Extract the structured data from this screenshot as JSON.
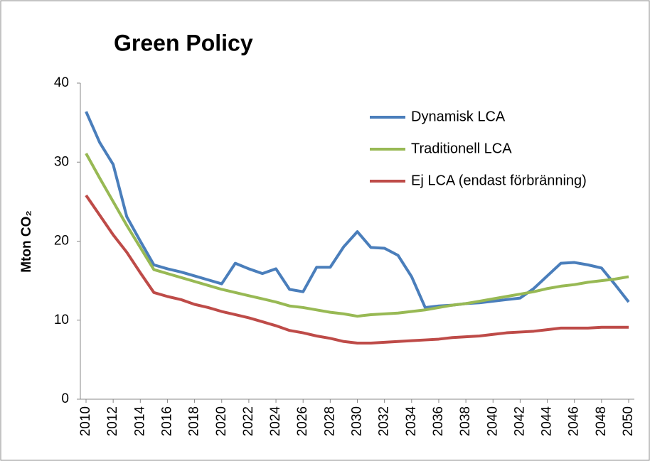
{
  "chart_data": {
    "type": "line",
    "title": "Green Policy",
    "y_label": "Mton CO₂",
    "x": [
      2010,
      2011,
      2012,
      2013,
      2014,
      2015,
      2016,
      2017,
      2018,
      2019,
      2020,
      2021,
      2022,
      2023,
      2024,
      2025,
      2026,
      2027,
      2028,
      2029,
      2030,
      2031,
      2032,
      2033,
      2034,
      2035,
      2036,
      2037,
      2038,
      2039,
      2040,
      2041,
      2042,
      2043,
      2044,
      2045,
      2046,
      2047,
      2048,
      2049,
      2050
    ],
    "xlim": [
      2010,
      2050
    ],
    "xticks": [
      2010,
      2012,
      2014,
      2016,
      2018,
      2020,
      2022,
      2024,
      2026,
      2028,
      2030,
      2032,
      2034,
      2036,
      2038,
      2040,
      2042,
      2044,
      2046,
      2048,
      2050
    ],
    "ylim": [
      0,
      40
    ],
    "yticks": [
      0,
      10,
      20,
      30,
      40
    ],
    "grid": false,
    "legend": "upper right",
    "series": [
      {
        "name": "Dynamisk LCA",
        "color": "#4a7ebb",
        "values": [
          36.4,
          32.5,
          29.7,
          23.1,
          20.0,
          17.0,
          16.5,
          16.1,
          15.6,
          15.1,
          14.6,
          17.2,
          16.5,
          15.9,
          16.5,
          13.9,
          13.6,
          16.7,
          16.7,
          19.3,
          21.2,
          19.2,
          19.1,
          18.2,
          15.5,
          11.6,
          11.8,
          11.9,
          12.1,
          12.2,
          12.4,
          12.6,
          12.8,
          14.0,
          15.6,
          17.2,
          17.3,
          17.0,
          16.6,
          14.5,
          12.3
        ]
      },
      {
        "name": "Traditionell LCA",
        "color": "#98b954",
        "values": [
          31.1,
          28.0,
          25.0,
          22.0,
          19.2,
          16.4,
          15.9,
          15.4,
          14.9,
          14.4,
          13.9,
          13.5,
          13.1,
          12.7,
          12.3,
          11.8,
          11.6,
          11.3,
          11.0,
          10.8,
          10.5,
          10.7,
          10.8,
          10.9,
          11.1,
          11.3,
          11.6,
          11.9,
          12.1,
          12.4,
          12.7,
          13.0,
          13.3,
          13.6,
          14.0,
          14.3,
          14.5,
          14.8,
          15.0,
          15.2,
          15.5
        ]
      },
      {
        "name": "Ej LCA (endast förbränning)",
        "color": "#be4b48",
        "values": [
          25.8,
          23.3,
          20.8,
          18.6,
          16.0,
          13.5,
          13.0,
          12.6,
          12.0,
          11.6,
          11.1,
          10.7,
          10.3,
          9.8,
          9.3,
          8.7,
          8.4,
          8.0,
          7.7,
          7.3,
          7.1,
          7.1,
          7.2,
          7.3,
          7.4,
          7.5,
          7.6,
          7.8,
          7.9,
          8.0,
          8.2,
          8.4,
          8.5,
          8.6,
          8.8,
          9.0,
          9.0,
          9.0,
          9.1,
          9.1,
          9.1
        ]
      }
    ]
  }
}
